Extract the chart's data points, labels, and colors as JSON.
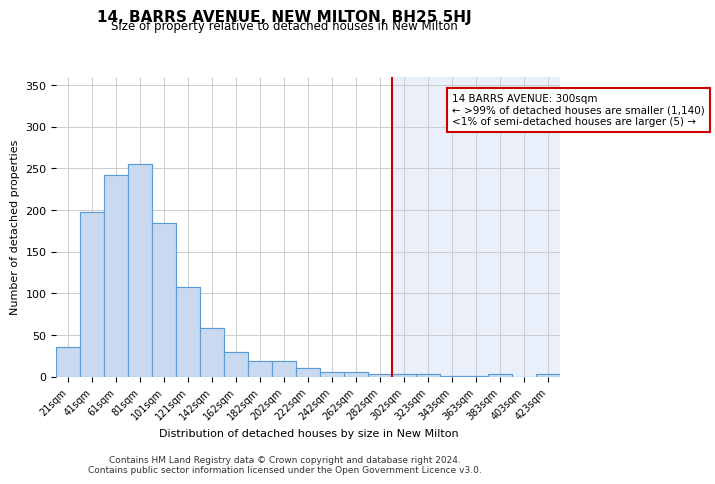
{
  "title": "14, BARRS AVENUE, NEW MILTON, BH25 5HJ",
  "subtitle": "Size of property relative to detached houses in New Milton",
  "xlabel": "Distribution of detached houses by size in New Milton",
  "ylabel": "Number of detached properties",
  "bar_labels": [
    "21sqm",
    "41sqm",
    "61sqm",
    "81sqm",
    "101sqm",
    "121sqm",
    "142sqm",
    "162sqm",
    "182sqm",
    "202sqm",
    "222sqm",
    "242sqm",
    "262sqm",
    "282sqm",
    "302sqm",
    "323sqm",
    "343sqm",
    "363sqm",
    "383sqm",
    "403sqm",
    "423sqm"
  ],
  "bar_values": [
    35,
    198,
    242,
    255,
    184,
    107,
    58,
    30,
    19,
    19,
    10,
    5,
    5,
    3,
    3,
    3,
    1,
    1,
    3,
    0,
    3
  ],
  "bar_color": "#c9d9f0",
  "bar_edge_color": "#5a9bd5",
  "highlight_bar_color": "#d6e8f7",
  "highlight_bar_edge_color": "#5a9bd5",
  "bg_color": "#f0f4fb",
  "plot_bg_color": "#ffffff",
  "highlight_bg_color": "#eaf0fb",
  "red_line_x": 14,
  "red_line_color": "#cc0000",
  "annotation_text": "14 BARRS AVENUE: 300sqm\n← >99% of detached houses are smaller (1,140)\n<1% of semi-detached houses are larger (5) →",
  "annotation_box_color": "#ffffff",
  "annotation_border_color": "#cc0000",
  "ylim": [
    0,
    360
  ],
  "yticks": [
    0,
    50,
    100,
    150,
    200,
    250,
    300,
    350
  ],
  "footer_line1": "Contains HM Land Registry data © Crown copyright and database right 2024.",
  "footer_line2": "Contains public sector information licensed under the Open Government Licence v3.0."
}
